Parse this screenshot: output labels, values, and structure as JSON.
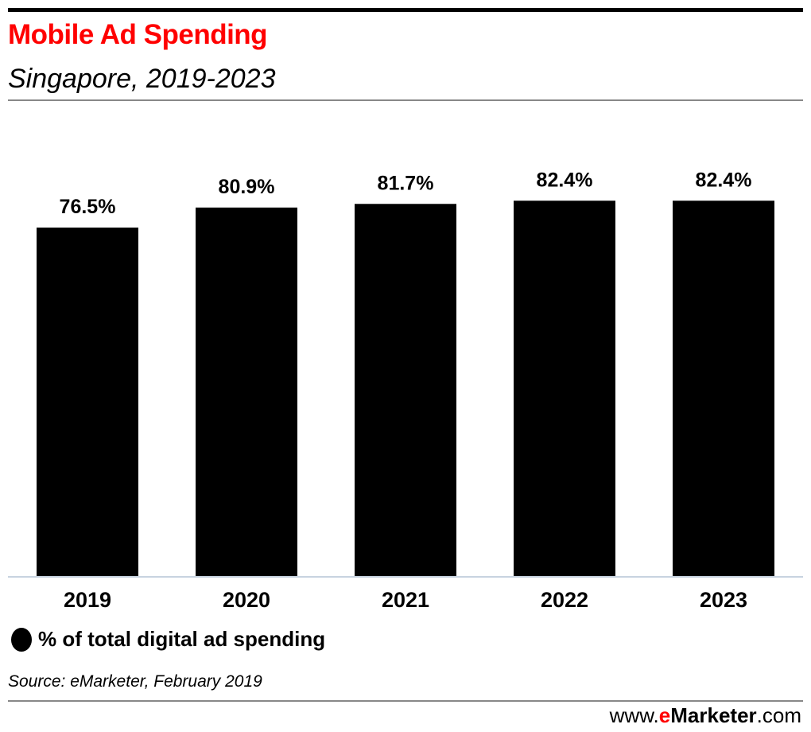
{
  "chart_data": {
    "type": "bar",
    "title": "Mobile Ad Spending",
    "subtitle": "Singapore, 2019-2023",
    "categories": [
      "2019",
      "2020",
      "2021",
      "2022",
      "2023"
    ],
    "series": [
      {
        "name": "% of total digital ad spending",
        "values": [
          76.5,
          80.9,
          81.7,
          82.4,
          82.4
        ]
      }
    ],
    "data_labels": [
      "76.5%",
      "80.9%",
      "81.7%",
      "82.4%",
      "82.4%"
    ],
    "xlabel": "",
    "ylabel": "",
    "ylim": [
      0,
      96
    ],
    "grid": false,
    "legend": "bottom-left",
    "bar_color": "#000000",
    "axis_color": "#c8d3e0"
  },
  "source": "Source: eMarketer, February 2019",
  "footer": {
    "prefix": "www.",
    "brand_e": "e",
    "brand_rest": "Marketer",
    "suffix": ".com"
  },
  "colors": {
    "title": "#ff0000"
  }
}
